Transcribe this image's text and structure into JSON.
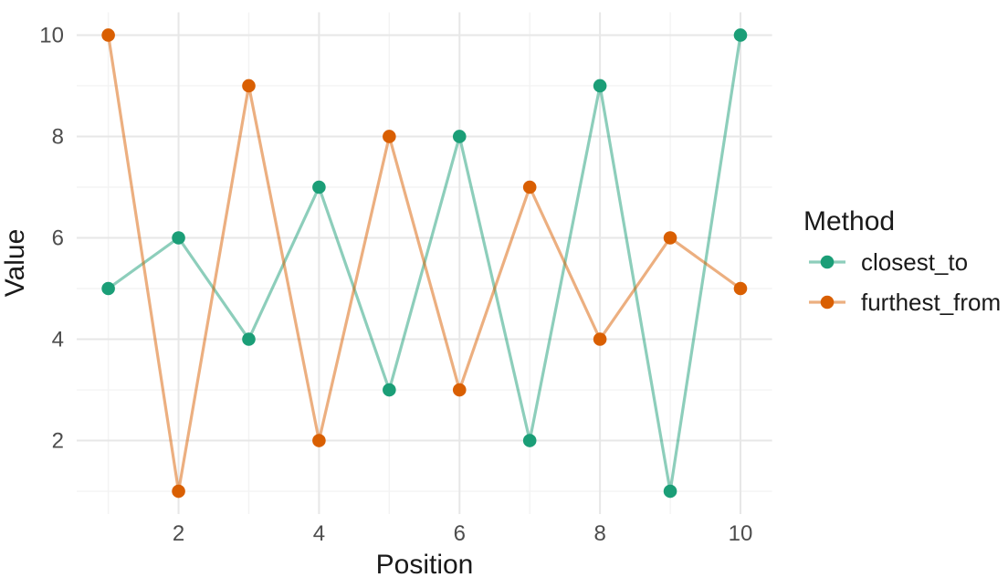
{
  "figure": {
    "background": "#FFFFFF"
  },
  "chart_data": {
    "type": "line",
    "title": "",
    "xlabel": "Position",
    "ylabel": "Value",
    "legend_title": "Method",
    "legend_position": "right",
    "x": [
      1,
      2,
      3,
      4,
      5,
      6,
      7,
      8,
      9,
      10
    ],
    "series": [
      {
        "name": "closest_to",
        "color": "#1B9E77",
        "values": [
          5,
          6,
          4,
          7,
          3,
          8,
          2,
          9,
          1,
          10
        ]
      },
      {
        "name": "furthest_from",
        "color": "#D95F02",
        "values": [
          10,
          1,
          9,
          2,
          8,
          3,
          7,
          4,
          6,
          5
        ]
      }
    ],
    "x_ticks": [
      2,
      4,
      6,
      8,
      10
    ],
    "y_ticks": [
      2,
      4,
      6,
      8,
      10
    ],
    "x_minor_gridlines": [
      1,
      3,
      5,
      7,
      9
    ],
    "y_minor_gridlines": [
      1,
      3,
      5,
      7,
      9
    ],
    "xlim": [
      0.55,
      10.45
    ],
    "ylim": [
      0.55,
      10.45
    ],
    "grid": "major+minor",
    "line_opacity": 0.5,
    "line_width": 3.2,
    "point_radius": 7.3,
    "colors": {
      "grid_major": "#E7E7E7",
      "grid_minor": "#F3F3F3",
      "tick_label": "#4D4D4D",
      "axis_title": "#1A1A1A",
      "legend_text": "#1A1A1A"
    }
  }
}
